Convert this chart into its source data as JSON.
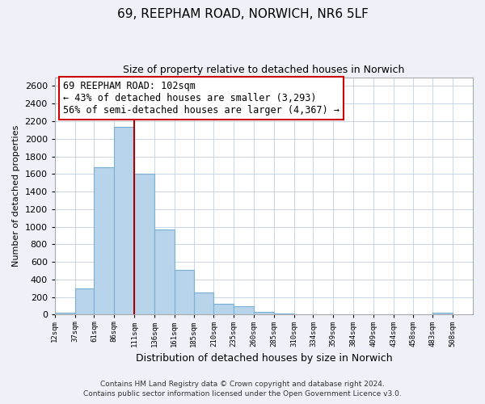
{
  "title1": "69, REEPHAM ROAD, NORWICH, NR6 5LF",
  "title2": "Size of property relative to detached houses in Norwich",
  "xlabel": "Distribution of detached houses by size in Norwich",
  "ylabel": "Number of detached properties",
  "bar_left_edges": [
    12,
    37,
    61,
    86,
    111,
    136,
    161,
    185,
    210,
    235,
    260,
    285,
    310,
    334,
    359,
    384,
    409,
    434,
    458,
    483
  ],
  "bar_widths": [
    25,
    24,
    25,
    25,
    25,
    25,
    24,
    25,
    25,
    25,
    25,
    25,
    24,
    25,
    25,
    25,
    25,
    24,
    25,
    25
  ],
  "bar_heights": [
    20,
    300,
    1680,
    2140,
    1600,
    970,
    510,
    255,
    125,
    100,
    35,
    10,
    8,
    4,
    3,
    2,
    0,
    0,
    0,
    20
  ],
  "bar_color": "#b8d4eb",
  "bar_edge_color": "#7aafd4",
  "vline_x": 111,
  "vline_color": "#aa0000",
  "tick_labels": [
    "12sqm",
    "37sqm",
    "61sqm",
    "86sqm",
    "111sqm",
    "136sqm",
    "161sqm",
    "185sqm",
    "210sqm",
    "235sqm",
    "260sqm",
    "285sqm",
    "310sqm",
    "334sqm",
    "359sqm",
    "384sqm",
    "409sqm",
    "434sqm",
    "458sqm",
    "483sqm",
    "508sqm"
  ],
  "ylim": [
    0,
    2700
  ],
  "yticks": [
    0,
    200,
    400,
    600,
    800,
    1000,
    1200,
    1400,
    1600,
    1800,
    2000,
    2200,
    2400,
    2600
  ],
  "annotation_title": "69 REEPHAM ROAD: 102sqm",
  "annotation_line1": "← 43% of detached houses are smaller (3,293)",
  "annotation_line2": "56% of semi-detached houses are larger (4,367) →",
  "footer1": "Contains HM Land Registry data © Crown copyright and database right 2024.",
  "footer2": "Contains public sector information licensed under the Open Government Licence v3.0.",
  "bg_color": "#eef2f8",
  "plot_bg_color": "#ffffff",
  "grid_color": "#c8d4e8"
}
